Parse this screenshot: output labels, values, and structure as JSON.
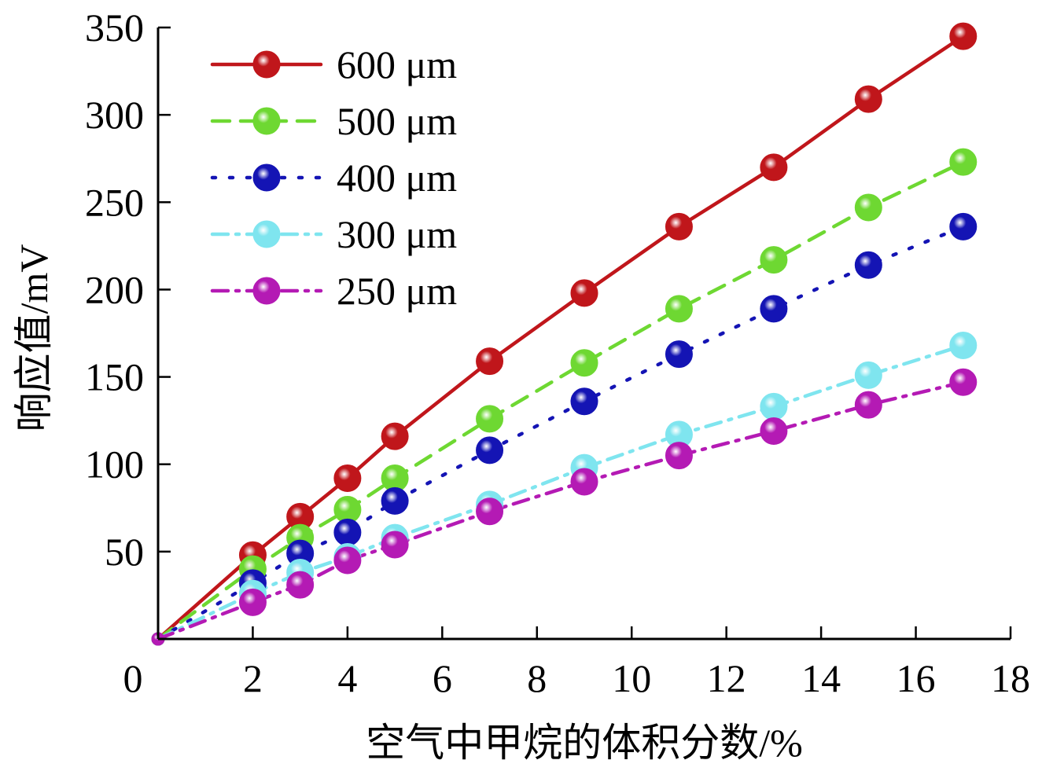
{
  "chart_data": {
    "type": "line",
    "title": "",
    "xlabel": "空气中甲烷的体积分数/%",
    "ylabel": "响应值/mV",
    "xlim": [
      0,
      18
    ],
    "ylim": [
      0,
      350
    ],
    "x_ticks": [
      "0",
      "2",
      "4",
      "6",
      "8",
      "10",
      "12",
      "14",
      "16",
      "18"
    ],
    "y_ticks": [
      "50",
      "100",
      "150",
      "200",
      "250",
      "300",
      "350"
    ],
    "grid": false,
    "legend_position": "top-left",
    "x": [
      0,
      2,
      3,
      4,
      5,
      7,
      9,
      11,
      13,
      15,
      17
    ],
    "series": [
      {
        "name": "600 μm",
        "color": "#c0161b",
        "line_style": "solid",
        "values": [
          0,
          48,
          70,
          92,
          116,
          159,
          198,
          236,
          270,
          309,
          345
        ]
      },
      {
        "name": "500 μm",
        "color": "#6ed832",
        "line_style": "dashed",
        "values": [
          0,
          40,
          58,
          74,
          92,
          126,
          158,
          189,
          217,
          247,
          273
        ]
      },
      {
        "name": "400 μm",
        "color": "#1414b4",
        "line_style": "dotted",
        "values": [
          0,
          32,
          49,
          61,
          79,
          108,
          136,
          163,
          189,
          214,
          236
        ]
      },
      {
        "name": "300 μm",
        "color": "#7fe5ef",
        "line_style": "dash-dot",
        "values": [
          0,
          26,
          38,
          47,
          58,
          77,
          98,
          117,
          133,
          151,
          168
        ]
      },
      {
        "name": "250 μm",
        "color": "#b41ab4",
        "line_style": "dash-dot",
        "values": [
          0,
          21,
          31,
          45,
          54,
          73,
          90,
          105,
          119,
          134,
          147
        ]
      }
    ]
  }
}
